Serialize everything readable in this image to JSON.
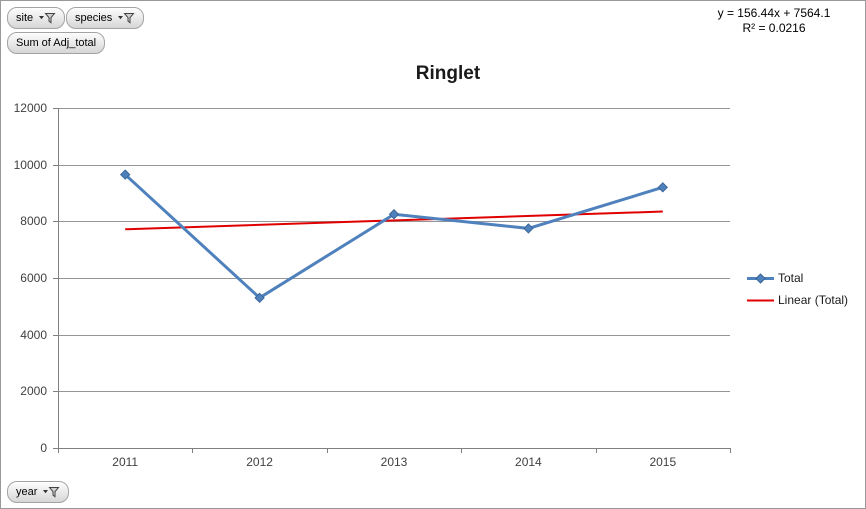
{
  "frame": {
    "background": "#ffffff",
    "border_color": "#999999"
  },
  "pivot_field_buttons": {
    "site": "site",
    "species": "species",
    "values": "Sum of Adj_total",
    "axis": "year"
  },
  "trend_equation": {
    "line1": "y = 156.44x + 7564.1",
    "line2": "R² = 0.0216"
  },
  "chart_data": {
    "type": "line",
    "title": "Ringlet",
    "categories": [
      "2011",
      "2012",
      "2013",
      "2014",
      "2015"
    ],
    "series": [
      {
        "name": "Total",
        "values": [
          9650,
          5300,
          8250,
          7750,
          9200
        ],
        "color": "#4F81BD",
        "marker": "diamond"
      }
    ],
    "trendline": {
      "label": "Linear (Total)",
      "slope": 156.44,
      "intercept": 7564.1,
      "r_squared": 0.0216,
      "color": "#E00000"
    },
    "xlabel": "",
    "ylabel": "",
    "ylim": [
      0,
      12000
    ],
    "y_ticks": [
      0,
      2000,
      4000,
      6000,
      8000,
      10000,
      12000
    ],
    "grid": true,
    "legend_position": "right",
    "colors": {
      "gridline": "#969696",
      "axis": "#808080",
      "tick_text": "#404040"
    }
  }
}
